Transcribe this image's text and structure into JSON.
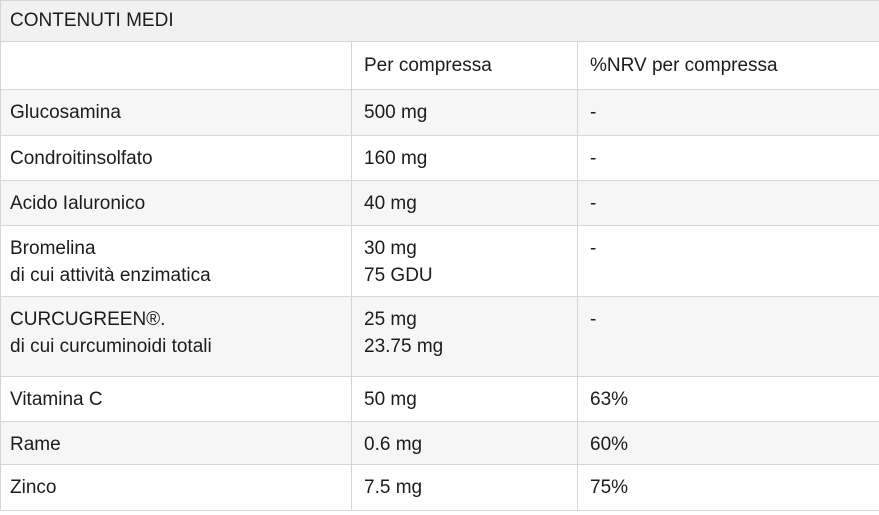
{
  "table": {
    "title": "CONTENUTI MEDI",
    "columns": {
      "name": "",
      "per_tablet": "Per compressa",
      "nrv": "%NRV per compressa"
    },
    "rows": [
      {
        "name": "Glucosamina",
        "amount": "500 mg",
        "nrv": "-"
      },
      {
        "name": "Condroitinsolfato",
        "amount": "160 mg",
        "nrv": "-"
      },
      {
        "name": "Acido Ialuronico",
        "amount": "40 mg",
        "nrv": "-"
      },
      {
        "name": "Bromelina",
        "name_sub": "di cui attività enzimatica",
        "amount": "30 mg",
        "amount_sub": "75 GDU",
        "nrv": "-"
      },
      {
        "name": "CURCUGREEN®.",
        "name_sub": "di cui curcuminoidi totali",
        "amount": "25 mg",
        "amount_sub": "23.75 mg",
        "nrv": "-"
      },
      {
        "name": "Vitamina C",
        "amount": "50 mg",
        "nrv": "63%"
      },
      {
        "name": "Rame",
        "amount": "0.6 mg",
        "nrv": "60%"
      },
      {
        "name": "Zinco",
        "amount": "7.5 mg",
        "nrv": "75%"
      }
    ],
    "colors": {
      "title_background": "#f1f1f1",
      "stripe_background": "#f6f6f6",
      "border": "#d6d6d6",
      "text": "#1c1c1c"
    }
  }
}
